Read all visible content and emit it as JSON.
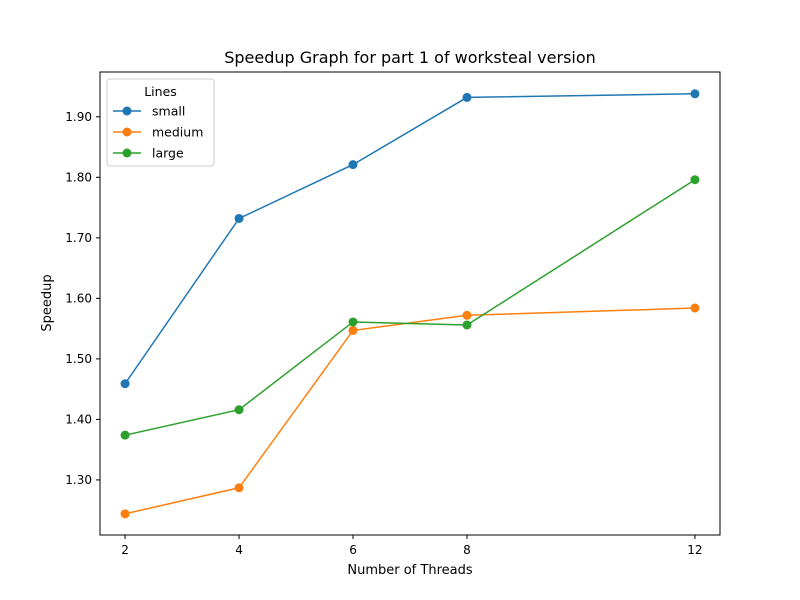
{
  "chart_data": {
    "type": "line",
    "title": "Speedup Graph for part 1 of worksteal version",
    "xlabel": "Number of Threads",
    "ylabel": "Speedup",
    "x": [
      2,
      4,
      6,
      8,
      12
    ],
    "xticks": [
      "2",
      "4",
      "6",
      "8",
      "12"
    ],
    "yticks": [
      "1.30",
      "1.40",
      "1.50",
      "1.60",
      "1.70",
      "1.80",
      "1.90"
    ],
    "xlim": [
      1.56,
      12.44
    ],
    "ylim": [
      1.209,
      1.974
    ],
    "grid": false,
    "legend": {
      "title": "Lines",
      "placement": "top-left"
    },
    "series": [
      {
        "name": "small",
        "color": "#1f77b4",
        "values": [
          1.459,
          1.732,
          1.821,
          1.932,
          1.938
        ]
      },
      {
        "name": "medium",
        "color": "#ff7f0e",
        "values": [
          1.244,
          1.287,
          1.547,
          1.572,
          1.584
        ]
      },
      {
        "name": "large",
        "color": "#2ca02c",
        "values": [
          1.374,
          1.416,
          1.561,
          1.556,
          1.796
        ]
      }
    ]
  }
}
